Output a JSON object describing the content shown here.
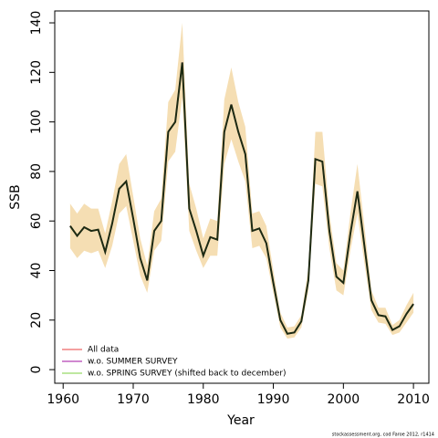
{
  "chart_data": {
    "type": "line",
    "x_label": "Year",
    "y_label": "SSB",
    "caption": "stockassessment.org, cod Faroe 2012, r1414",
    "x": [
      1961,
      1962,
      1963,
      1964,
      1965,
      1966,
      1967,
      1968,
      1969,
      1970,
      1971,
      1972,
      1973,
      1974,
      1975,
      1976,
      1977,
      1978,
      1979,
      1980,
      1981,
      1982,
      1983,
      1984,
      1985,
      1986,
      1987,
      1988,
      1989,
      1990,
      1991,
      1992,
      1993,
      1994,
      1995,
      1996,
      1997,
      1998,
      1999,
      2000,
      2001,
      2002,
      2003,
      2004,
      2005,
      2006,
      2007,
      2008,
      2009,
      2010
    ],
    "band": {
      "color": "#f5deb3",
      "lower": [
        49,
        45,
        48,
        47,
        48,
        41,
        50,
        63,
        66,
        52,
        38,
        31,
        48,
        52,
        84,
        88,
        110,
        56,
        48,
        41,
        46,
        46,
        83,
        93,
        84,
        76,
        49,
        50,
        45,
        31,
        17,
        12.5,
        13,
        17,
        32,
        75,
        74,
        49,
        32,
        30,
        48,
        63,
        43,
        24,
        19,
        18.5,
        14,
        15,
        19,
        23
      ],
      "upper": [
        67,
        63,
        67,
        65,
        65,
        55,
        68,
        83,
        87,
        70,
        53,
        42,
        64,
        69,
        108,
        113,
        140,
        75,
        65,
        53,
        61,
        60,
        109,
        122,
        108,
        98,
        63,
        64,
        58,
        40,
        23,
        17,
        17.5,
        22,
        41,
        96,
        96,
        63,
        43,
        40,
        63,
        83,
        58,
        32,
        25,
        25,
        18,
        20,
        26,
        31
      ]
    },
    "line_color": "#1c2a12",
    "series": [
      {
        "name": "All data",
        "color": "#f08080",
        "values": [
          58,
          54,
          57.5,
          56,
          56.5,
          47.5,
          59,
          73,
          76,
          61,
          45,
          36,
          56,
          60,
          96,
          100,
          124,
          65,
          56,
          46,
          53.5,
          52.5,
          96,
          107,
          96,
          87,
          56,
          57,
          51,
          35,
          20,
          14.5,
          15,
          19.5,
          36,
          85,
          84,
          56,
          37.5,
          35,
          55,
          72,
          50,
          28,
          22,
          21.5,
          16,
          17.5,
          22.5,
          26.5
        ]
      },
      {
        "name": "w.o. SUMMER SURVEY",
        "color": "#c060c0",
        "values": [
          58,
          54,
          57.5,
          56,
          56.5,
          47.5,
          59,
          73,
          76,
          61,
          45,
          36,
          56,
          60,
          96,
          100,
          124,
          65,
          56,
          46,
          53.5,
          52.5,
          96,
          107,
          96,
          87,
          56,
          57,
          51,
          35,
          20,
          14.5,
          15,
          19.5,
          36,
          85,
          84,
          56,
          37.5,
          35,
          55,
          72,
          50,
          28,
          22,
          21.5,
          16,
          17.5,
          22.5,
          26.5
        ]
      },
      {
        "name": "w.o. SPRING SURVEY (shifted back to december)",
        "color": "#a8e080",
        "values": [
          58,
          54,
          57.5,
          56,
          56.5,
          47.5,
          59,
          73,
          76,
          61,
          45,
          36,
          56,
          60,
          96,
          100,
          124,
          65,
          56,
          46,
          53.5,
          52.5,
          96,
          107,
          96,
          87,
          56,
          57,
          51,
          35,
          20,
          14.5,
          15,
          19.5,
          36,
          85,
          84,
          56,
          37.5,
          35,
          55,
          72,
          50,
          28,
          22,
          21.5,
          16,
          17.5,
          22.5,
          26.5
        ]
      }
    ],
    "xlim": [
      1958.8,
      2012.2
    ],
    "xticks": [
      1960,
      1970,
      1980,
      1990,
      2000,
      2010
    ],
    "ylim": [
      -5.5,
      144.8
    ],
    "yticks": [
      0,
      20,
      40,
      60,
      80,
      100,
      120,
      140
    ],
    "legend": "lower-left"
  }
}
